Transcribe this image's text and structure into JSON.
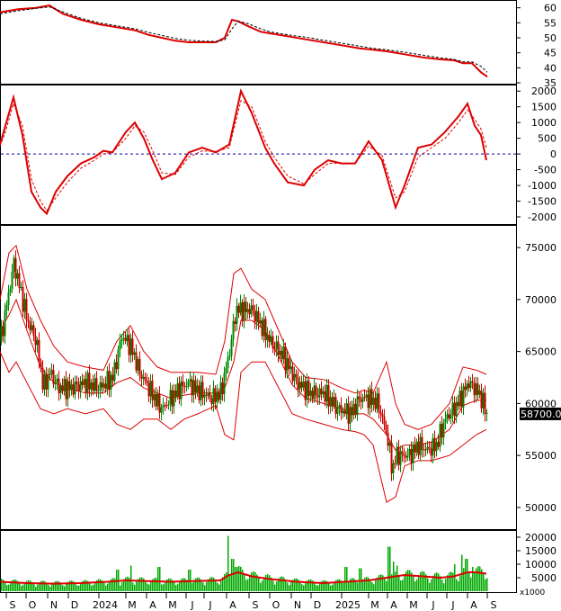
{
  "chart_data": [
    {
      "type": "line",
      "panel": "oscillator-1",
      "ylim": [
        35,
        62
      ],
      "yticks": [
        "60",
        "55",
        "50",
        "45",
        "40",
        "35"
      ],
      "series": [
        {
          "role": "main",
          "color": "#dd0000",
          "x": [
            0,
            20,
            40,
            55,
            70,
            90,
            110,
            130,
            150,
            165,
            180,
            195,
            210,
            225,
            240,
            250,
            258,
            265,
            275,
            290,
            300,
            320,
            340,
            360,
            380,
            400,
            415,
            430,
            450,
            470,
            490,
            505,
            515,
            525,
            535,
            542
          ],
          "values": [
            58.5,
            59.5,
            60,
            60.8,
            58,
            56,
            54.5,
            53.5,
            52.5,
            51,
            50,
            49,
            48.5,
            48.5,
            48.5,
            50,
            56,
            55.5,
            54,
            52,
            51.5,
            50.5,
            49.5,
            48.5,
            47.5,
            46.5,
            46,
            45.5,
            44.5,
            43.5,
            42.8,
            42.5,
            41.5,
            41.5,
            38.5,
            37
          ]
        },
        {
          "role": "signal",
          "color": "#000000",
          "x": [
            0,
            20,
            40,
            55,
            70,
            90,
            110,
            130,
            150,
            165,
            180,
            195,
            210,
            225,
            240,
            250,
            258,
            265,
            275,
            290,
            300,
            320,
            340,
            360,
            380,
            400,
            415,
            430,
            450,
            470,
            490,
            505,
            515,
            525,
            535,
            542
          ],
          "values": [
            58,
            59,
            59.8,
            60.3,
            58.6,
            56.5,
            55,
            54,
            53,
            51.8,
            50.8,
            49.8,
            49.2,
            48.9,
            48.8,
            49.3,
            53,
            55.5,
            54.8,
            53,
            52,
            51,
            50.2,
            49.2,
            48.2,
            47.2,
            46.5,
            46,
            45.2,
            44.2,
            43.3,
            42.8,
            42,
            42,
            40.5,
            38.5
          ]
        }
      ]
    },
    {
      "type": "line",
      "panel": "oscillator-2",
      "ylim": [
        -2200,
        2150
      ],
      "yticks": [
        "2000",
        "1500",
        "1000",
        "500",
        "0",
        "-500",
        "-1000",
        "-1500",
        "-2000"
      ],
      "zero_line": 0,
      "series": [
        {
          "role": "main",
          "color": "#dd0000",
          "x": [
            0,
            6,
            15,
            25,
            35,
            45,
            52,
            62,
            75,
            90,
            105,
            115,
            125,
            140,
            150,
            160,
            170,
            180,
            195,
            210,
            225,
            240,
            255,
            268,
            280,
            295,
            305,
            320,
            338,
            350,
            365,
            380,
            395,
            410,
            425,
            440,
            450,
            465,
            480,
            495,
            510,
            520,
            528,
            535,
            541
          ],
          "values": [
            300,
            900,
            1800,
            600,
            -1200,
            -1700,
            -1900,
            -1200,
            -700,
            -300,
            -100,
            100,
            50,
            700,
            1000,
            500,
            -200,
            -800,
            -600,
            50,
            200,
            50,
            300,
            2000,
            1300,
            200,
            -300,
            -900,
            -1000,
            -500,
            -200,
            -300,
            -300,
            400,
            -200,
            -1700,
            -1000,
            200,
            300,
            700,
            1200,
            1600,
            900,
            600,
            -200
          ]
        },
        {
          "role": "signal",
          "color": "#dd0000",
          "dashed": true,
          "x": [
            0,
            6,
            15,
            25,
            35,
            45,
            52,
            62,
            75,
            90,
            105,
            115,
            125,
            140,
            150,
            160,
            170,
            180,
            195,
            210,
            225,
            240,
            255,
            268,
            280,
            295,
            305,
            320,
            338,
            350,
            365,
            380,
            395,
            410,
            425,
            440,
            450,
            465,
            480,
            495,
            510,
            520,
            528,
            535,
            541
          ],
          "values": [
            250,
            700,
            1600,
            900,
            -800,
            -1500,
            -1800,
            -1400,
            -900,
            -450,
            -200,
            0,
            50,
            500,
            900,
            700,
            100,
            -600,
            -650,
            -100,
            100,
            80,
            200,
            1700,
            1500,
            400,
            -100,
            -700,
            -950,
            -650,
            -300,
            -300,
            -300,
            250,
            -50,
            -1400,
            -1200,
            -100,
            200,
            500,
            1000,
            1400,
            1100,
            800,
            200
          ]
        }
      ]
    },
    {
      "type": "candlestick",
      "panel": "price",
      "ylim": [
        48000,
        77000
      ],
      "yticks": [
        "75000",
        "70000",
        "65000",
        "60000",
        "55000",
        "50000"
      ],
      "last_price_label": "58700.00",
      "overlay_series": [
        {
          "role": "band-upper",
          "color": "#dd0000",
          "x": [
            0,
            10,
            18,
            30,
            45,
            60,
            75,
            95,
            115,
            130,
            145,
            160,
            175,
            190,
            205,
            220,
            240,
            250,
            260,
            268,
            280,
            295,
            310,
            325,
            340,
            360,
            380,
            395,
            405,
            415,
            430,
            440,
            450,
            465,
            480,
            500,
            515,
            530,
            541
          ],
          "values": [
            70000,
            74500,
            75200,
            71000,
            68000,
            65500,
            64000,
            63500,
            63200,
            66000,
            67500,
            65000,
            63500,
            63000,
            63000,
            63000,
            62800,
            66000,
            72500,
            73000,
            71000,
            70000,
            67000,
            64000,
            62500,
            62300,
            61500,
            61000,
            61300,
            61000,
            64000,
            60000,
            58000,
            57500,
            58000,
            60000,
            63500,
            63200,
            62800
          ]
        },
        {
          "role": "band-lower",
          "color": "#dd0000",
          "x": [
            0,
            10,
            18,
            30,
            45,
            60,
            75,
            95,
            115,
            130,
            145,
            160,
            175,
            190,
            205,
            220,
            240,
            250,
            260,
            268,
            280,
            295,
            310,
            325,
            340,
            360,
            380,
            395,
            405,
            415,
            430,
            440,
            450,
            465,
            480,
            500,
            515,
            530,
            541
          ],
          "values": [
            65000,
            63000,
            64000,
            62000,
            59500,
            59000,
            59500,
            59000,
            59500,
            58000,
            57500,
            58500,
            58500,
            57500,
            58500,
            59000,
            59800,
            57000,
            56500,
            63000,
            64000,
            64000,
            61500,
            59000,
            58500,
            58000,
            57500,
            57300,
            57000,
            56000,
            50500,
            51000,
            54000,
            54500,
            54500,
            55000,
            56000,
            57000,
            57500
          ]
        },
        {
          "role": "band-middle",
          "color": "#dd0000",
          "x": [
            0,
            10,
            18,
            30,
            45,
            60,
            75,
            95,
            115,
            130,
            145,
            160,
            175,
            190,
            205,
            220,
            240,
            250,
            260,
            268,
            280,
            295,
            310,
            325,
            340,
            360,
            380,
            395,
            405,
            415,
            430,
            440,
            450,
            465,
            480,
            500,
            515,
            530,
            541
          ],
          "values": [
            67000,
            68500,
            70000,
            67000,
            63500,
            62000,
            61500,
            61000,
            61000,
            62000,
            62500,
            61500,
            61000,
            60500,
            60800,
            61000,
            61000,
            61500,
            64000,
            68000,
            68000,
            67000,
            64500,
            61800,
            60500,
            60000,
            59500,
            59000,
            59000,
            58500,
            57000,
            55500,
            56000,
            56000,
            56300,
            57500,
            59800,
            60300,
            60300
          ]
        }
      ],
      "close": {
        "x": [
          0,
          8,
          15,
          22,
          30,
          40,
          48,
          55,
          65,
          80,
          95,
          110,
          125,
          135,
          145,
          155,
          165,
          175,
          180,
          190,
          200,
          210,
          215,
          225,
          235,
          245,
          255,
          262,
          270,
          280,
          290,
          300,
          315,
          330,
          345,
          360,
          375,
          390,
          400,
          410,
          420,
          430,
          436,
          440,
          445,
          455,
          465,
          475,
          485,
          495,
          505,
          515,
          520,
          528,
          535,
          541
        ],
        "values": [
          66000,
          70000,
          73500,
          71000,
          68000,
          66000,
          61500,
          63000,
          61500,
          61500,
          62000,
          61500,
          62500,
          66500,
          65500,
          63000,
          61500,
          60000,
          59500,
          60500,
          61500,
          62000,
          61500,
          61000,
          60500,
          61000,
          65000,
          69000,
          69000,
          69000,
          67500,
          66000,
          64500,
          62000,
          61000,
          61000,
          59500,
          59000,
          60500,
          60500,
          60000,
          57000,
          53500,
          55000,
          55000,
          55000,
          56000,
          55500,
          56000,
          58500,
          59500,
          61000,
          62000,
          61500,
          60500,
          59000
        ]
      },
      "candle_color_up": "#008800",
      "candle_color_down": "#cc0000"
    },
    {
      "type": "bar",
      "panel": "volume",
      "ylim": [
        0,
        22000
      ],
      "yticks": [
        "20000",
        "15000",
        "10000",
        "5000"
      ],
      "unit_label": "x1000",
      "bar_color": "#00aa00",
      "ma_color": "#dd0000",
      "spikes": [
        {
          "x": 130,
          "value": 8000
        },
        {
          "x": 145,
          "value": 9500
        },
        {
          "x": 176,
          "value": 9000
        },
        {
          "x": 210,
          "value": 8000
        },
        {
          "x": 253,
          "value": 20500
        },
        {
          "x": 258,
          "value": 12000
        },
        {
          "x": 262,
          "value": 9000
        },
        {
          "x": 384,
          "value": 9000
        },
        {
          "x": 400,
          "value": 8500
        },
        {
          "x": 432,
          "value": 16500
        },
        {
          "x": 437,
          "value": 11000
        },
        {
          "x": 441,
          "value": 9500
        },
        {
          "x": 505,
          "value": 10000
        },
        {
          "x": 513,
          "value": 13500
        },
        {
          "x": 518,
          "value": 12000
        },
        {
          "x": 525,
          "value": 9000
        }
      ],
      "ma": {
        "x": [
          0,
          30,
          60,
          90,
          120,
          140,
          160,
          190,
          220,
          245,
          255,
          265,
          280,
          300,
          330,
          360,
          385,
          410,
          430,
          450,
          470,
          490,
          505,
          520,
          530,
          541
        ],
        "values": [
          3500,
          3000,
          2800,
          3000,
          3500,
          4000,
          3800,
          3500,
          3800,
          4000,
          6000,
          7000,
          5500,
          4500,
          3500,
          3000,
          3500,
          4000,
          5000,
          6000,
          5500,
          5000,
          5500,
          7000,
          7000,
          6500
        ]
      }
    }
  ],
  "x_axis": {
    "labels": [
      "S",
      "O",
      "N",
      "D",
      "2024",
      "M",
      "A",
      "M",
      "J",
      "J",
      "A",
      "S",
      "O",
      "N",
      "D",
      "2025",
      "M",
      "A",
      "M",
      "J",
      "J",
      "A",
      "S"
    ],
    "label_positions": [
      14,
      36,
      60,
      83,
      117,
      147,
      170,
      192,
      214,
      234,
      259,
      284,
      307,
      331,
      353,
      387,
      417,
      438,
      460,
      482,
      504,
      527,
      549
    ]
  }
}
